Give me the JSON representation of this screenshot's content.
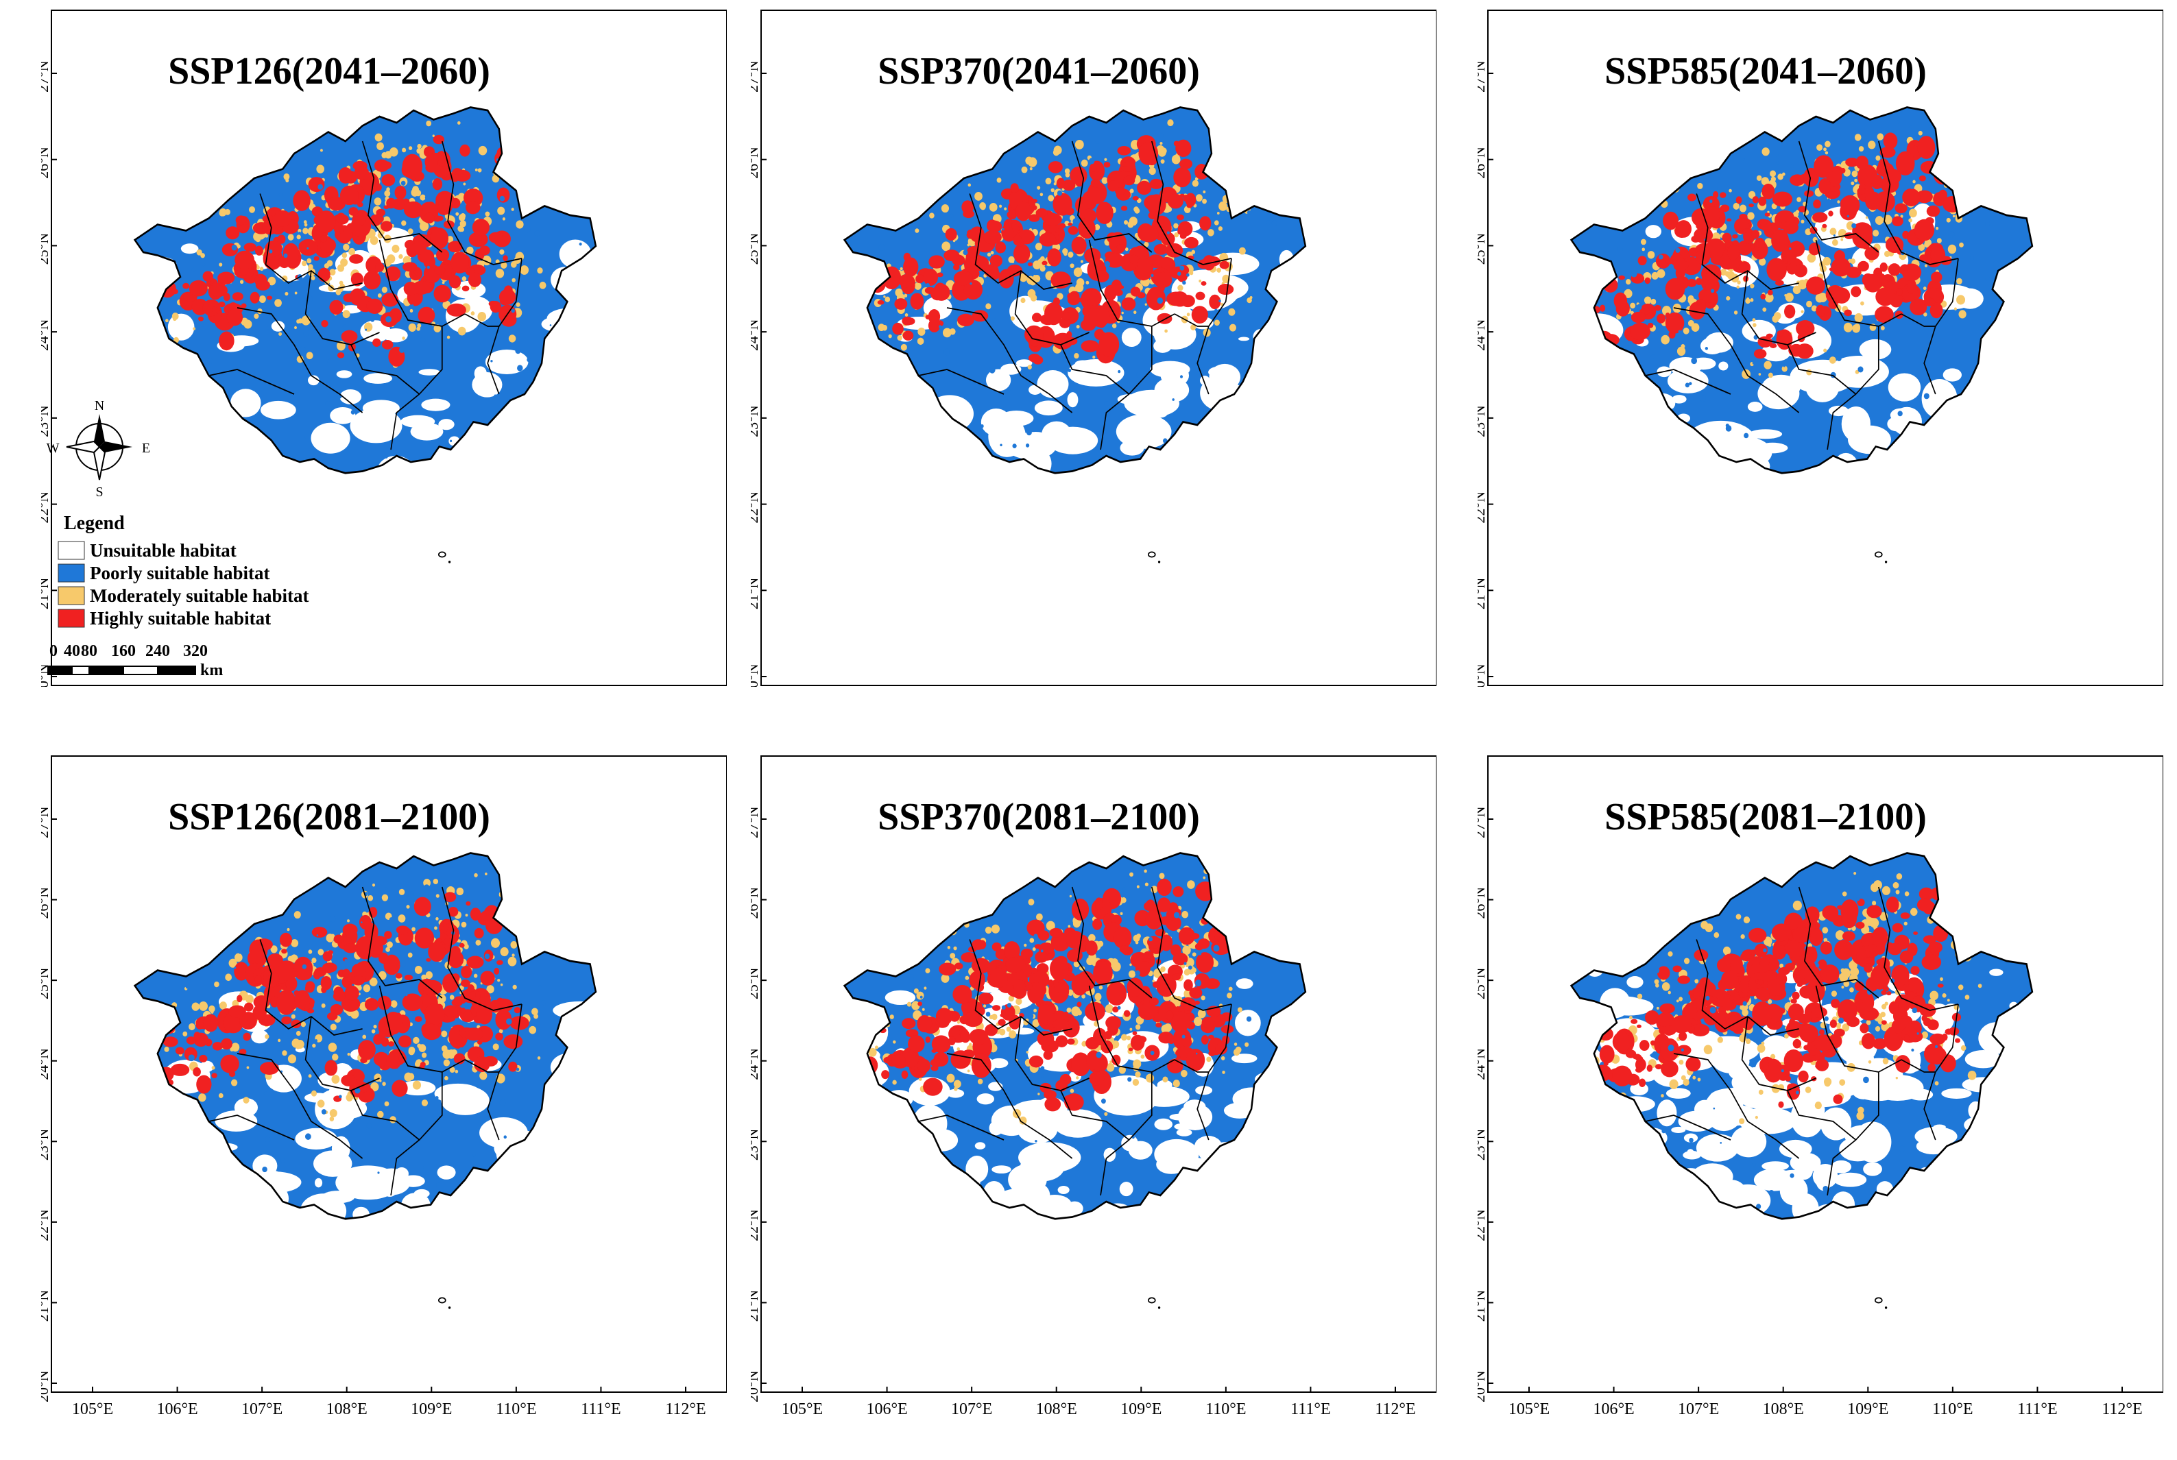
{
  "colors": {
    "unsuitable": "#ffffff",
    "poor": "#1f78d8",
    "moderate": "#f7c96b",
    "high": "#f02121",
    "outline": "#000000"
  },
  "latitude_labels": [
    "27°N",
    "26°N",
    "25°N",
    "24°N",
    "23°N",
    "22°N",
    "21°N",
    "20°N"
  ],
  "longitude_labels": [
    "105°E",
    "106°E",
    "107°E",
    "108°E",
    "109°E",
    "110°E",
    "111°E",
    "112°E"
  ],
  "panels": [
    {
      "title": "SSP126(2041–2060)",
      "high": 0.55,
      "poor": 0.5,
      "white": 0.28
    },
    {
      "title": "SSP370(2041–2060)",
      "high": 0.6,
      "poor": 0.48,
      "white": 0.3
    },
    {
      "title": "SSP585(2041–2060)",
      "high": 0.62,
      "poor": 0.5,
      "white": 0.3
    },
    {
      "title": "SSP126(2081–2100)",
      "high": 0.58,
      "poor": 0.5,
      "white": 0.28
    },
    {
      "title": "SSP370(2081–2100)",
      "high": 0.7,
      "poor": 0.38,
      "white": 0.5
    },
    {
      "title": "SSP585(2081–2100)",
      "high": 0.72,
      "poor": 0.3,
      "white": 0.62
    }
  ],
  "legend": {
    "title": "Legend",
    "items": [
      {
        "label": "Unsuitable habitat",
        "class": "unsuitable"
      },
      {
        "label": "Poorly suitable habitat",
        "class": "poor"
      },
      {
        "label": "Moderately suitable habitat",
        "class": "moderate"
      },
      {
        "label": "Highly suitable habitat",
        "class": "high"
      }
    ]
  },
  "compass": {
    "n": "N",
    "s": "S",
    "e": "E",
    "w": "W"
  },
  "scale_bar": {
    "ticks": [
      "0",
      "40",
      "80",
      "160",
      "240",
      "320"
    ],
    "unit": "km"
  }
}
